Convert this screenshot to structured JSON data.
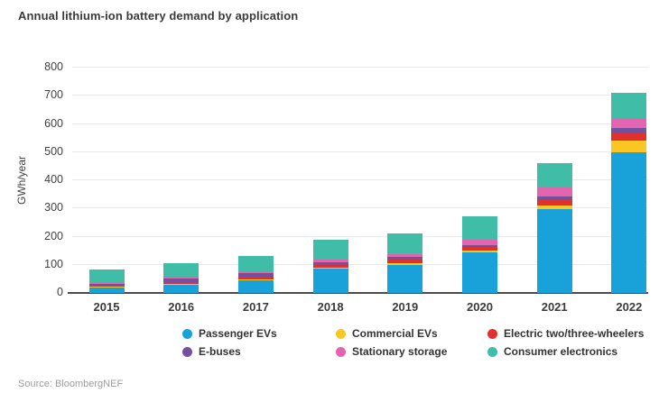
{
  "title": "Annual lithium-ion battery demand by application",
  "source": "Source: BloombergNEF",
  "colors": {
    "passenger_evs": "#19a2da",
    "commercial_evs": "#f9c623",
    "electric_two_three_wheelers": "#e1312e",
    "e_buses": "#74519f",
    "stationary_storage": "#e365af",
    "consumer_electronics": "#3fbda7",
    "gridline": "#e9e9e9",
    "axis_line": "#4b4b4b",
    "title_text": "#3a3a3a"
  },
  "chart_data": {
    "type": "bar",
    "stacked": true,
    "title": "Annual lithium-ion battery demand by application",
    "categories": [
      "2015",
      "2016",
      "2017",
      "2018",
      "2019",
      "2020",
      "2021",
      "2022"
    ],
    "series": [
      {
        "name": "Passenger EVs",
        "color": "#19a2da",
        "values": [
          20,
          29,
          45,
          86,
          100,
          144,
          297,
          500
        ]
      },
      {
        "name": "Commercial EVs",
        "color": "#f9c623",
        "values": [
          1,
          3,
          4,
          5,
          5,
          6,
          12,
          40
        ]
      },
      {
        "name": "Electric two/three-wheelers",
        "color": "#e1312e",
        "values": [
          2,
          5,
          5,
          8,
          12,
          12,
          22,
          30
        ]
      },
      {
        "name": "E-buses",
        "color": "#74519f",
        "values": [
          10,
          13,
          15,
          10,
          10,
          8,
          12,
          17
        ]
      },
      {
        "name": "Stationary storage",
        "color": "#e365af",
        "values": [
          2,
          6,
          6,
          9,
          12,
          18,
          30,
          35
        ]
      },
      {
        "name": "Consumer electronics",
        "color": "#3fbda7",
        "values": [
          48,
          50,
          57,
          72,
          73,
          83,
          87,
          90
        ]
      }
    ],
    "totals": [
      83,
      106,
      132,
      190,
      212,
      271,
      460,
      712
    ],
    "xlabel": "",
    "ylabel": "GWh/year",
    "ylim": [
      0,
      800
    ],
    "yticks": [
      0,
      100,
      200,
      300,
      400,
      500,
      600,
      700,
      800
    ],
    "grid": "horizontal",
    "legend_position": "bottom",
    "legend_order": [
      "Passenger EVs",
      "Commercial EVs",
      "Electric two/three-wheelers",
      "E-buses",
      "Stationary storage",
      "Consumer electronics"
    ]
  }
}
